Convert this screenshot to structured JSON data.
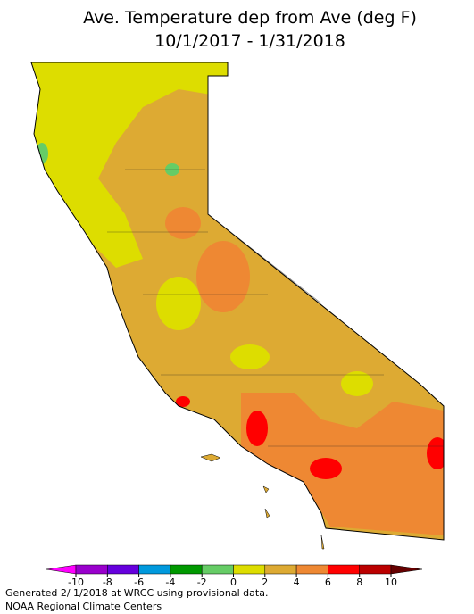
{
  "title": "Ave. Temperature dep from Ave (deg F)",
  "subtitle": "10/1/2017 - 1/31/2018",
  "colorbar": {
    "ticks": [
      -10,
      -8,
      -6,
      -4,
      -2,
      0,
      2,
      4,
      6,
      8,
      10
    ],
    "colors": [
      "#ff00ff",
      "#9900cc",
      "#6600dd",
      "#0099dd",
      "#009900",
      "#66cc66",
      "#dddd00",
      "#ddaa33",
      "#ee8833",
      "#ff0000",
      "#bb0000",
      "#660000"
    ]
  },
  "footer": [
    "Generated 2/ 1/2018 at WRCC using provisional data.",
    "NOAA Regional Climate Centers"
  ]
}
